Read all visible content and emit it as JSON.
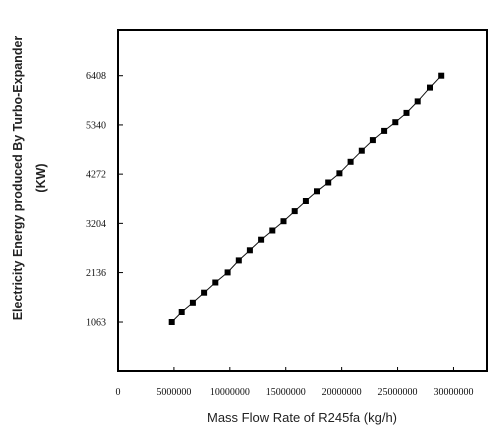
{
  "chart_data": {
    "type": "line",
    "title": "",
    "xlabel": "Mass Flow Rate of R245fa (kg/h)",
    "ylabel_line1": "Electricity Energy produced By Turbo-Expander",
    "ylabel_line2": "(KW)",
    "xlim": [
      0,
      33000000
    ],
    "ylim": [
      0,
      7400
    ],
    "x_ticks": [
      0,
      5000000,
      10000000,
      15000000,
      20000000,
      25000000,
      30000000
    ],
    "x_tick_labels": [
      "0",
      "5000000",
      "10000000",
      "15000000",
      "20000000",
      "25000000",
      "30000000"
    ],
    "y_ticks": [
      1063,
      2136,
      3204,
      4272,
      5340,
      6408
    ],
    "y_tick_labels": [
      "1063",
      "2136",
      "3204",
      "4272",
      "5340",
      "6408"
    ],
    "grid": false,
    "legend": "none",
    "series": [
      {
        "marker": "square",
        "color": "#000000",
        "x": [
          4800000,
          5700000,
          6700000,
          7700000,
          8700000,
          9800000,
          10800000,
          11800000,
          12800000,
          13800000,
          14800000,
          15800000,
          16800000,
          17800000,
          18800000,
          19800000,
          20800000,
          21800000,
          22800000,
          23800000,
          24800000,
          25800000,
          26800000,
          27900000,
          28900000
        ],
        "y": [
          1063,
          1280,
          1480,
          1700,
          1920,
          2140,
          2400,
          2620,
          2850,
          3050,
          3250,
          3470,
          3690,
          3900,
          4090,
          4290,
          4540,
          4780,
          5010,
          5210,
          5400,
          5600,
          5850,
          6150,
          6408
        ]
      }
    ]
  }
}
